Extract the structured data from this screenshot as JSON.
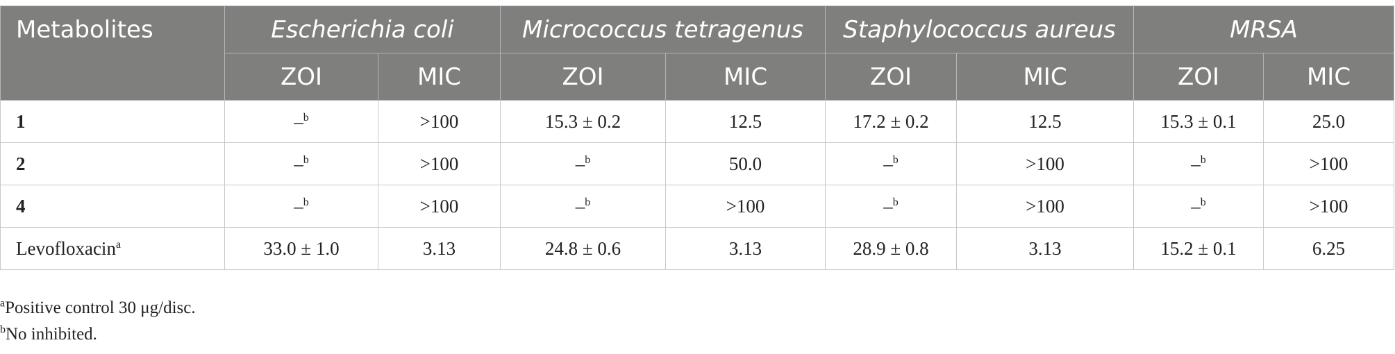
{
  "table": {
    "header": {
      "first": "Metabolites",
      "groups": [
        "Escherichia coli",
        "Micrococcus tetragenus",
        "Staphylococcus aureus",
        "MRSA"
      ],
      "subheaders": [
        "ZOI",
        "MIC",
        "ZOI",
        "MIC",
        "ZOI",
        "MIC",
        "ZOI",
        "MIC"
      ]
    },
    "rows": [
      {
        "label": {
          "text": "1"
        },
        "cells": [
          {
            "text": "–",
            "sup": "b"
          },
          ">100",
          "15.3 ± 0.2",
          "12.5",
          "17.2 ± 0.2",
          "12.5",
          "15.3 ± 0.1",
          "25.0"
        ]
      },
      {
        "label": {
          "text": "2"
        },
        "cells": [
          {
            "text": "–",
            "sup": "b"
          },
          ">100",
          {
            "text": "–",
            "sup": "b"
          },
          "50.0",
          {
            "text": "–",
            "sup": "b"
          },
          ">100",
          {
            "text": "–",
            "sup": "b"
          },
          ">100"
        ]
      },
      {
        "label": {
          "text": "4"
        },
        "cells": [
          {
            "text": "–",
            "sup": "b"
          },
          ">100",
          {
            "text": "–",
            "sup": "b"
          },
          ">100",
          {
            "text": "–",
            "sup": "b"
          },
          ">100",
          {
            "text": "–",
            "sup": "b"
          },
          ">100"
        ]
      },
      {
        "label": {
          "text": "Levofloxacin",
          "sup": "a"
        },
        "cells": [
          "33.0 ± 1.0",
          "3.13",
          "24.8 ± 0.6",
          "3.13",
          "28.9 ± 0.8",
          "3.13",
          "15.2 ± 0.1",
          "6.25"
        ]
      }
    ]
  },
  "footnotes": [
    {
      "sup": "a",
      "text": "Positive control 30 μg/disc."
    },
    {
      "sup": "b",
      "text": "No inhibited."
    }
  ]
}
